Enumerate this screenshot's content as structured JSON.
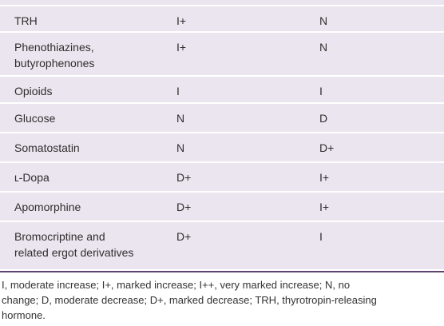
{
  "table": {
    "rows": [
      [
        [
          "TRH"
        ],
        [
          "I+"
        ],
        [
          "N"
        ]
      ],
      [
        [
          "Phenothiazines,",
          "butyrophenones"
        ],
        [
          "I+"
        ],
        [
          "N"
        ]
      ],
      [
        [
          "Opioids"
        ],
        [
          "I"
        ],
        [
          "I"
        ]
      ],
      [
        [
          "Glucose"
        ],
        [
          "N"
        ],
        [
          "D"
        ]
      ],
      [
        [
          "Somatostatin"
        ],
        [
          "N"
        ],
        [
          "D+"
        ]
      ],
      [
        [
          "ʟ-Dopa"
        ],
        [
          "D+"
        ],
        [
          "I+"
        ]
      ],
      [
        [
          "Apomorphine"
        ],
        [
          "D+"
        ],
        [
          "I+"
        ]
      ],
      [
        [
          "Bromocriptine and",
          "related ergot derivatives"
        ],
        [
          "D+"
        ],
        [
          "I"
        ]
      ]
    ]
  },
  "footnote": [
    "I, moderate increase; I+, marked increase; I++, very marked increase; N, no",
    "change; D, moderate decrease; D+, marked decrease; TRH, thyrotropin-releasing",
    "hormone."
  ]
}
